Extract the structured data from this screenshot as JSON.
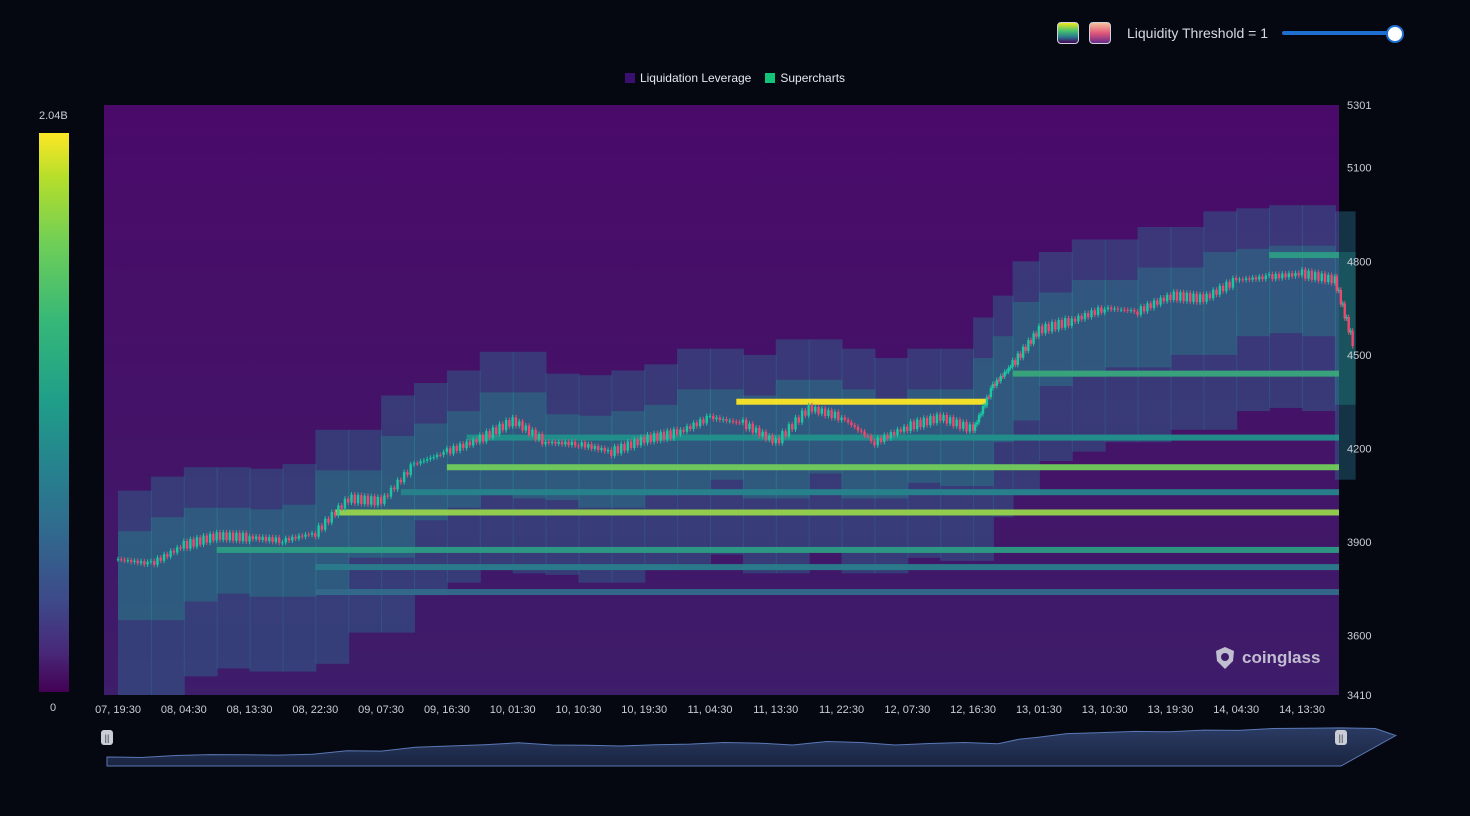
{
  "toolbar": {
    "swatches": [
      "viridis-palette",
      "warm-palette"
    ],
    "threshold_label": "Liquidity Threshold = 1",
    "threshold_value": 1,
    "slider_fill": 1.0,
    "accent": "#1f6fd0"
  },
  "legend": [
    {
      "label": "Liquidation Leverage",
      "color": "#3b0f70"
    },
    {
      "label": "Supercharts",
      "color": "#11c47a"
    }
  ],
  "colorbar": {
    "max_label": "2.04B",
    "min_label": "0"
  },
  "watermark": "coinglass",
  "navigator": {
    "handle_left": "||",
    "handle_right": "||"
  },
  "chart_data": {
    "type": "heatmap",
    "title": "",
    "y_axis_ticks": [
      5301,
      5100,
      4800,
      4500,
      4200,
      3900,
      3600,
      3410
    ],
    "ylim": [
      3410,
      5301
    ],
    "x_axis_ticks": [
      "07, 19:30",
      "08, 04:30",
      "08, 13:30",
      "08, 22:30",
      "09, 07:30",
      "09, 16:30",
      "10, 01:30",
      "10, 10:30",
      "10, 19:30",
      "11, 04:30",
      "11, 13:30",
      "11, 22:30",
      "12, 07:30",
      "12, 16:30",
      "13, 01:30",
      "13, 10:30",
      "13, 19:30",
      "14, 04:30",
      "14, 13:30"
    ],
    "colorscale": {
      "min": 0,
      "max": 2040000000,
      "palette": "viridis"
    },
    "price_series": [
      {
        "t": 0,
        "p": 3845
      },
      {
        "t": 0.5,
        "p": 3830
      },
      {
        "t": 1,
        "p": 3890
      },
      {
        "t": 1.5,
        "p": 3920
      },
      {
        "t": 2,
        "p": 3915
      },
      {
        "t": 2.5,
        "p": 3905
      },
      {
        "t": 3,
        "p": 3930
      },
      {
        "t": 3.5,
        "p": 4040
      },
      {
        "t": 4,
        "p": 4030
      },
      {
        "t": 4.5,
        "p": 4150
      },
      {
        "t": 5,
        "p": 4190
      },
      {
        "t": 5.5,
        "p": 4230
      },
      {
        "t": 6,
        "p": 4290
      },
      {
        "t": 6.5,
        "p": 4220
      },
      {
        "t": 7,
        "p": 4215
      },
      {
        "t": 7.5,
        "p": 4190
      },
      {
        "t": 8,
        "p": 4230
      },
      {
        "t": 8.5,
        "p": 4250
      },
      {
        "t": 9,
        "p": 4300
      },
      {
        "t": 9.5,
        "p": 4280
      },
      {
        "t": 10,
        "p": 4220
      },
      {
        "t": 10.5,
        "p": 4330
      },
      {
        "t": 11,
        "p": 4300
      },
      {
        "t": 11.5,
        "p": 4220
      },
      {
        "t": 12,
        "p": 4270
      },
      {
        "t": 12.5,
        "p": 4300
      },
      {
        "t": 13,
        "p": 4260
      },
      {
        "t": 13.3,
        "p": 4400
      },
      {
        "t": 13.6,
        "p": 4470
      },
      {
        "t": 14,
        "p": 4580
      },
      {
        "t": 14.5,
        "p": 4610
      },
      {
        "t": 15,
        "p": 4650
      },
      {
        "t": 15.5,
        "p": 4640
      },
      {
        "t": 16,
        "p": 4690
      },
      {
        "t": 16.5,
        "p": 4680
      },
      {
        "t": 17,
        "p": 4740
      },
      {
        "t": 17.5,
        "p": 4750
      },
      {
        "t": 18,
        "p": 4760
      },
      {
        "t": 18.5,
        "p": 4740
      },
      {
        "t": 18.8,
        "p": 4520
      }
    ],
    "liquidity_bands": [
      {
        "price": 4140,
        "intensity": 0.78,
        "from_t": 5
      },
      {
        "price": 3995,
        "intensity": 0.84,
        "from_t": 3.3
      },
      {
        "price": 3875,
        "intensity": 0.55,
        "from_t": 1.5
      },
      {
        "price": 4440,
        "intensity": 0.6,
        "from_t": 13.6
      },
      {
        "price": 4235,
        "intensity": 0.5,
        "from_t": 5.3
      },
      {
        "price": 4060,
        "intensity": 0.45,
        "from_t": 4.3
      },
      {
        "price": 3820,
        "intensity": 0.42,
        "from_t": 3
      },
      {
        "price": 3740,
        "intensity": 0.35,
        "from_t": 3
      },
      {
        "price": 4820,
        "intensity": 0.55,
        "from_t": 17.5
      },
      {
        "price": 4350,
        "intensity": 1.0,
        "from_t": 9.4,
        "to_t": 13.2
      }
    ],
    "grid": false,
    "legend_position": "top-center"
  }
}
